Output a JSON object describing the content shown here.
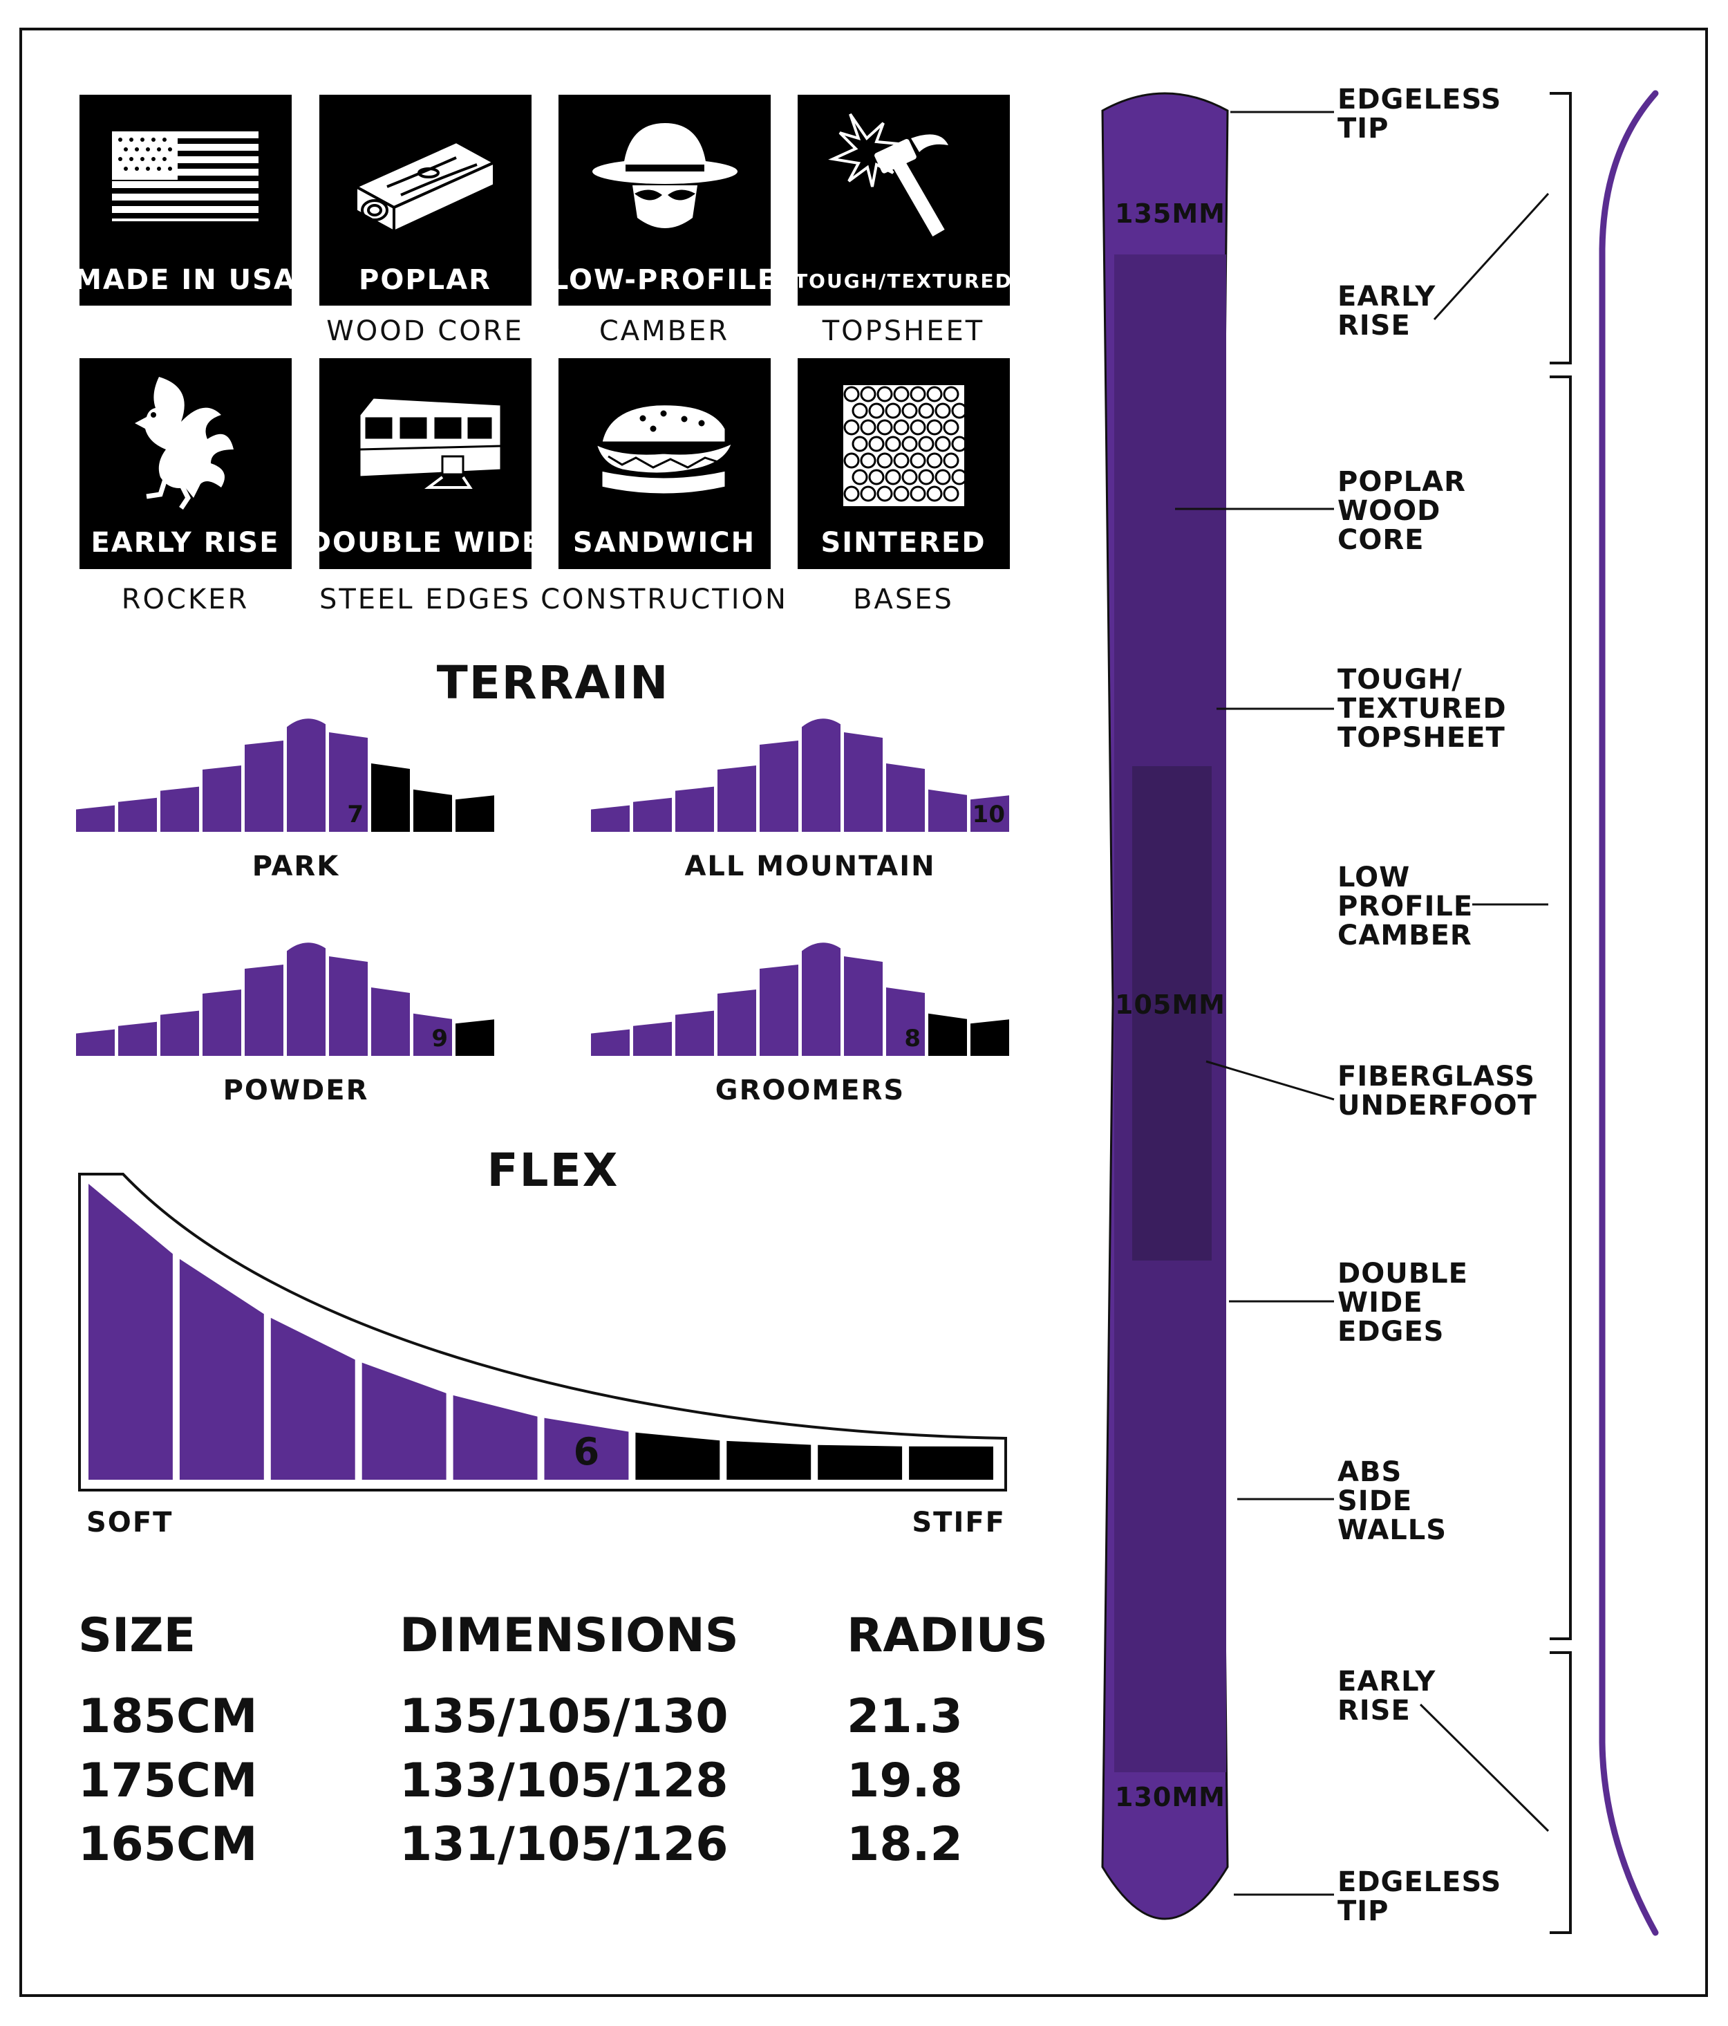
{
  "colors": {
    "purple": "#5a2d91",
    "purple_dark": "#4a2478",
    "purple_darker": "#3a1e5e",
    "black": "#000000",
    "white": "#ffffff"
  },
  "features": [
    {
      "icon": "us-flag-icon",
      "title": "MADE IN USA",
      "subtitle": ""
    },
    {
      "icon": "wood-plank-icon",
      "title": "POPLAR",
      "subtitle": "WOOD CORE"
    },
    {
      "icon": "masked-man-icon",
      "title": "LOW-PROFILE",
      "subtitle": "CAMBER"
    },
    {
      "icon": "hammer-icon",
      "title": "TOUGH/TEXTURED",
      "subtitle": "TOPSHEET"
    },
    {
      "icon": "rooster-icon",
      "title": "EARLY RISE",
      "subtitle": "ROCKER"
    },
    {
      "icon": "trailer-icon",
      "title": "DOUBLE WIDE",
      "subtitle": "STEEL EDGES"
    },
    {
      "icon": "sandwich-icon",
      "title": "SANDWICH",
      "subtitle": "CONSTRUCTION"
    },
    {
      "icon": "honeycomb-icon",
      "title": "SINTERED",
      "subtitle": "BASES"
    }
  ],
  "terrain": {
    "title": "TERRAIN",
    "scale_max": 10,
    "items": [
      {
        "label": "PARK",
        "rating": 7
      },
      {
        "label": "ALL MOUNTAIN",
        "rating": 10
      },
      {
        "label": "POWDER",
        "rating": 9
      },
      {
        "label": "GROOMERS",
        "rating": 8
      }
    ]
  },
  "flex": {
    "title": "FLEX",
    "rating": 6,
    "scale_max": 10,
    "min_label": "SOFT",
    "max_label": "STIFF"
  },
  "specs": {
    "headers": [
      "SIZE",
      "DIMENSIONS",
      "RADIUS"
    ],
    "rows": [
      [
        "185CM",
        "135/105/130",
        "21.3"
      ],
      [
        "175CM",
        "133/105/128",
        "19.8"
      ],
      [
        "165CM",
        "131/105/126",
        "18.2"
      ]
    ]
  },
  "ski": {
    "tip_width": "135MM",
    "waist_width": "105MM",
    "tail_width": "130MM",
    "callouts": [
      [
        "EDGELESS",
        "TIP"
      ],
      [
        "EARLY",
        "RISE"
      ],
      [
        "POPLAR",
        "WOOD",
        "CORE"
      ],
      [
        "TOUGH/",
        "TEXTURED",
        "TOPSHEET"
      ],
      [
        "LOW",
        "PROFILE",
        "CAMBER"
      ],
      [
        "FIBERGLASS",
        "UNDERFOOT"
      ],
      [
        "DOUBLE",
        "WIDE",
        "EDGES"
      ],
      [
        "ABS",
        "SIDE",
        "WALLS"
      ],
      [
        "EARLY",
        "RISE"
      ],
      [
        "EDGELESS",
        "TIP"
      ]
    ]
  }
}
